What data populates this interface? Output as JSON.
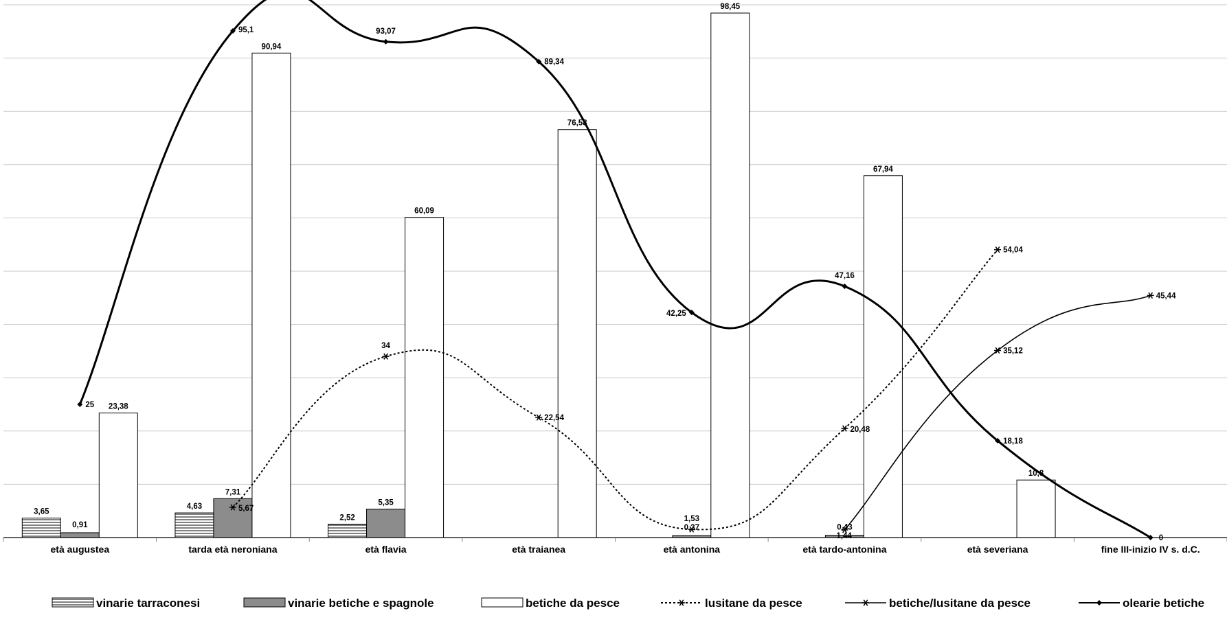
{
  "chart_data": {
    "type": "bar",
    "categories": [
      "età augustea",
      "tarda età neroniana",
      "età flavia",
      "età traianea",
      "età antonina",
      "età tardo-antonina",
      "età severiana",
      "fine III-inizio IV s. d.C."
    ],
    "ylim": [
      0,
      100
    ],
    "grid": true,
    "legend": "bottom",
    "bar_series": [
      {
        "name": "vinarie tarraconesi",
        "fill": "hatch",
        "values": [
          3.65,
          4.63,
          2.52,
          null,
          null,
          null,
          null,
          null
        ],
        "labels": [
          "3,65",
          "4,63",
          "2,52",
          "",
          "",
          "",
          "",
          ""
        ]
      },
      {
        "name": "vinarie betiche e spagnole",
        "fill": "#8c8c8c",
        "values": [
          0.91,
          7.31,
          5.35,
          null,
          0.37,
          0.43,
          null,
          null
        ],
        "labels": [
          "0,91",
          "7,31",
          "5,35",
          "",
          "0,37",
          "0,43",
          "",
          ""
        ]
      },
      {
        "name": "betiche da pesce",
        "fill": "#ffffff",
        "values": [
          23.38,
          90.94,
          60.09,
          76.58,
          98.45,
          67.94,
          10.8,
          null
        ],
        "labels": [
          "23,38",
          "90,94",
          "60,09",
          "76,58",
          "98,45",
          "67,94",
          "10,8",
          ""
        ]
      }
    ],
    "line_series": [
      {
        "name": "lusitane da pesce",
        "style": "dotted",
        "marker": "asterisk",
        "values": [
          null,
          5.67,
          34,
          22.54,
          1.53,
          20.48,
          54.04,
          null
        ],
        "labels": [
          "",
          "5,67",
          "34",
          "22,54",
          "1,53",
          "20,48",
          "54,04",
          ""
        ]
      },
      {
        "name": "betiche/lusitane da pesce",
        "style": "solid-thin",
        "marker": "asterisk",
        "values": [
          null,
          null,
          null,
          null,
          null,
          1.44,
          35.12,
          45.44
        ],
        "labels": [
          "",
          "",
          "",
          "",
          "",
          "1,44",
          "35,12",
          "45,44"
        ]
      },
      {
        "name": "olearie betiche",
        "style": "solid-thick",
        "marker": "diamond",
        "values": [
          25,
          95.1,
          93.07,
          89.34,
          42.25,
          47.16,
          18.18,
          0
        ],
        "labels": [
          "25",
          "95,1",
          "93,07",
          "89,34",
          "42,25",
          "47,16",
          "18,18",
          "0"
        ]
      }
    ]
  }
}
